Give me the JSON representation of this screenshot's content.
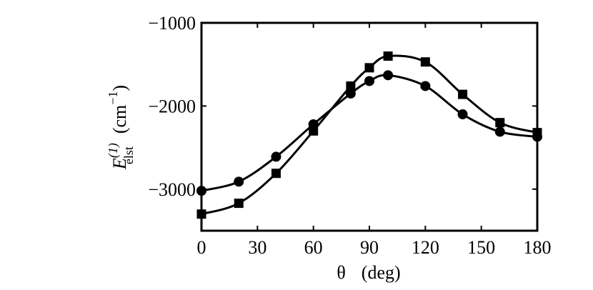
{
  "chart_data": {
    "type": "line",
    "title": "",
    "xlabel": {
      "symbol": "θ",
      "unit": "(deg)"
    },
    "ylabel": {
      "symbol": "E",
      "superscript": "(1)",
      "subscript": "elst",
      "unit_open": "(cm",
      "unit_exp": "−1",
      "unit_close": ")"
    },
    "xlim": [
      0,
      180
    ],
    "ylim": [
      -3500,
      -1000
    ],
    "xticks": [
      0,
      30,
      60,
      90,
      120,
      150,
      180
    ],
    "xtick_labels": [
      "0",
      "30",
      "60",
      "90",
      "120",
      "150",
      "180"
    ],
    "yticks": [
      -1000,
      -2000,
      -3000
    ],
    "ytick_labels": [
      "−1000",
      "−2000",
      "−3000"
    ],
    "grid": false,
    "series": [
      {
        "marker": "square",
        "x": [
          0,
          20,
          40,
          60,
          80,
          90,
          100,
          120,
          140,
          160,
          180
        ],
        "y": [
          -3300,
          -3170,
          -2810,
          -2300,
          -1760,
          -1540,
          -1400,
          -1470,
          -1860,
          -2200,
          -2320
        ]
      },
      {
        "marker": "circle",
        "x": [
          0,
          20,
          40,
          60,
          80,
          90,
          100,
          120,
          140,
          160,
          180
        ],
        "y": [
          -3020,
          -2910,
          -2610,
          -2220,
          -1850,
          -1700,
          -1630,
          -1760,
          -2100,
          -2310,
          -2370
        ]
      }
    ]
  }
}
